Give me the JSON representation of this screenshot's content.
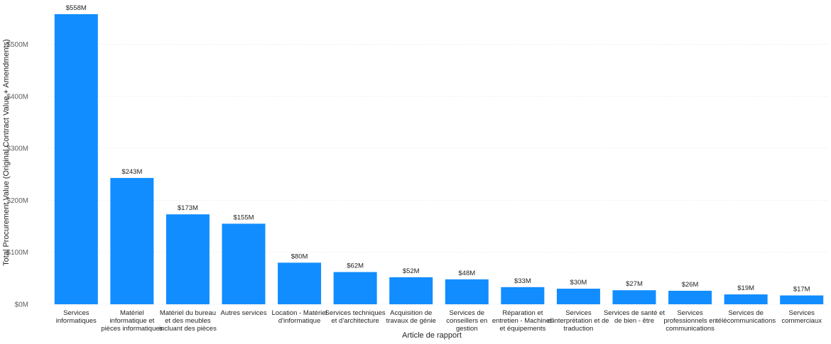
{
  "chart_data": {
    "type": "bar",
    "title": "",
    "xlabel": "Article de rapport",
    "ylabel": "Total Procurement Value (Original Contract Value + Amendments)",
    "ylim": [
      0,
      558
    ],
    "y_unit": "millions USD",
    "yticks": [
      0,
      100,
      200,
      300,
      400,
      500
    ],
    "ytick_labels": [
      "$0M",
      "$100M",
      "$200M",
      "$300M",
      "$400M",
      "$500M"
    ],
    "grid": true,
    "bar_color": "#118dff",
    "categories": [
      [
        "Services",
        "informatiques"
      ],
      [
        "Matériel",
        "informatique et",
        "pièces informatiques"
      ],
      [
        "Matériel du bureau",
        "et des meubles",
        "incluant des pièces"
      ],
      [
        "Autres services"
      ],
      [
        "Location - Matériel",
        "d'informatique"
      ],
      [
        "Services techniques",
        "et d'architecture"
      ],
      [
        "Acquisition de",
        "travaux de génie"
      ],
      [
        "Services de",
        "conseillers en",
        "gestion"
      ],
      [
        "Réparation et",
        "entretien - Machines",
        "et équipements"
      ],
      [
        "Services",
        "d'interprétation et de",
        "traduction"
      ],
      [
        "Services de santé et",
        "de bien - être"
      ],
      [
        "Services",
        "professionnels en",
        "communications"
      ],
      [
        "Services de",
        "télécommunications"
      ],
      [
        "Services",
        "commerciaux"
      ]
    ],
    "values": [
      558,
      243,
      173,
      155,
      80,
      62,
      52,
      48,
      33,
      30,
      27,
      26,
      19,
      17
    ],
    "value_labels": [
      "$558M",
      "$243M",
      "$173M",
      "$155M",
      "$80M",
      "$62M",
      "$52M",
      "$48M",
      "$33M",
      "$30M",
      "$27M",
      "$26M",
      "$19M",
      "$17M"
    ]
  }
}
